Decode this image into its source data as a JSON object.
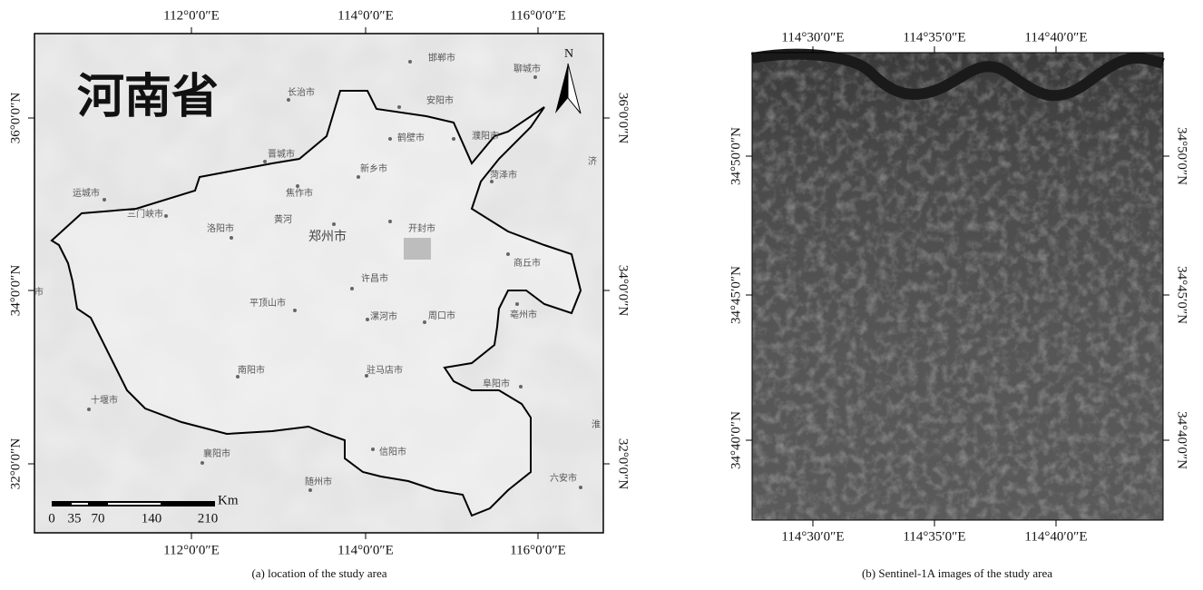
{
  "left_map": {
    "title": "河南省",
    "north": "N",
    "lon_labels": [
      "112°0′0″E",
      "114°0′0″E",
      "116°0′0″E"
    ],
    "lat_labels": [
      "36°0′0″N",
      "34°0′0″N",
      "32°0′0″N"
    ],
    "places": [
      "邯郸市",
      "聊城市",
      "长治市",
      "安阳市",
      "鹤壁市",
      "濮阳市",
      "晋城市",
      "新乡市",
      "菏泽市",
      "济",
      "运城市",
      "焦作市",
      "三门峡市",
      "洛阳市",
      "黄河",
      "郑州市",
      "开封市",
      "商丘市",
      "许昌市",
      "平顶山市",
      "漯河市",
      "周口市",
      "亳州市",
      "南阳市",
      "驻马店市",
      "阜阳市",
      "十堰市",
      "淮",
      "襄阳市",
      "信阳市",
      "随州市",
      "六安市",
      "市"
    ],
    "scale": {
      "unit": "Km",
      "labels": [
        "0",
        "35",
        "70",
        "140",
        "210"
      ]
    },
    "caption": "(a) location of the study area"
  },
  "right_map": {
    "lon_labels": [
      "114°30′0″E",
      "114°35′0″E",
      "114°40′0″E"
    ],
    "lat_labels": [
      "34°50′0″N",
      "34°45′0″N",
      "34°40′0″N"
    ],
    "caption": "(b) Sentinel-1A images of the study area"
  }
}
